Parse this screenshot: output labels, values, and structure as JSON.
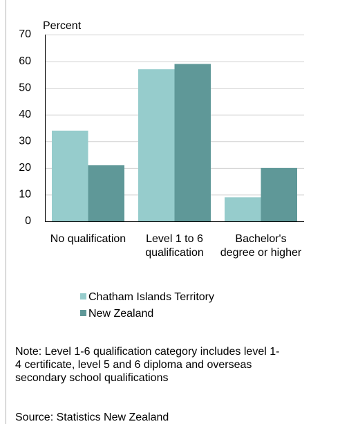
{
  "chart_data": {
    "type": "bar",
    "y_label": "Percent",
    "categories": [
      "No qualification",
      "Level 1 to 6 qualification",
      "Bachelor's degree or higher"
    ],
    "series": [
      {
        "name": "Chatham Islands Territory",
        "color": "#96cccc",
        "values": [
          34,
          57,
          9
        ]
      },
      {
        "name": "New Zealand",
        "color": "#5f9898",
        "values": [
          21,
          59,
          20
        ]
      }
    ],
    "ylim": [
      0,
      70
    ],
    "yticks": [
      0,
      10,
      20,
      30,
      40,
      50,
      60,
      70
    ],
    "grid": true,
    "note": "Note: Level 1-6 qualification category includes level 1-4 certificate, level 5 and 6 diploma and overseas secondary school qualifications",
    "source": "Source: Statistics New Zealand"
  }
}
